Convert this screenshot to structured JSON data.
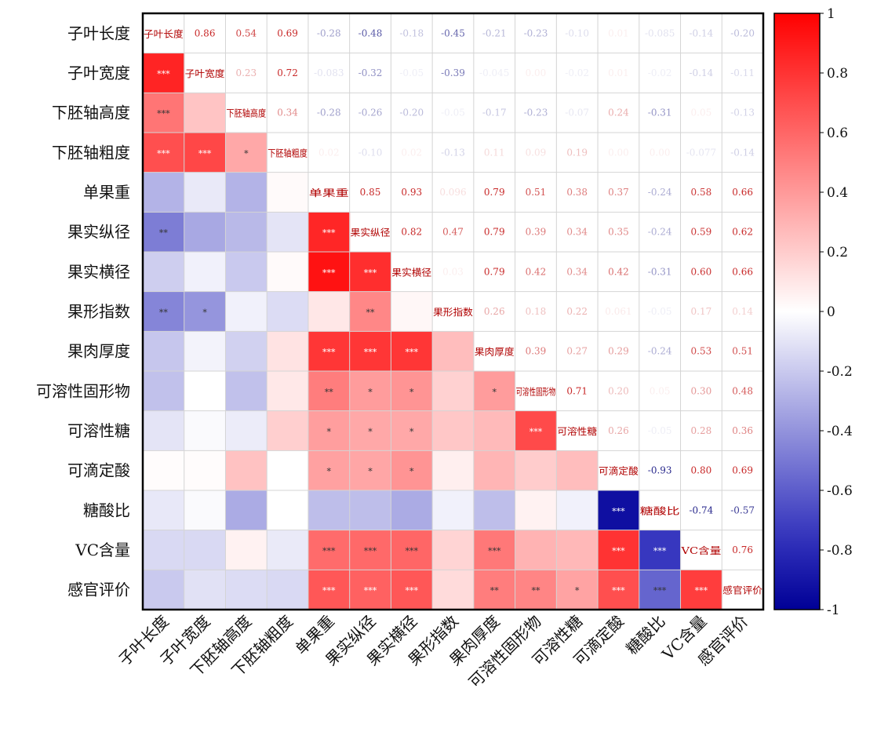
{
  "chart_data": {
    "type": "heatmap",
    "title": "",
    "variables": [
      "子叶长度",
      "子叶宽度",
      "下胚轴高度",
      "下胚轴粗度",
      "单果重",
      "果实纵径",
      "果实横径",
      "果形指数",
      "果肉厚度",
      "可溶性固形物",
      "可溶性糖",
      "可滴定酸",
      "糖酸比",
      "VC含量",
      "感官评价"
    ],
    "upper_values": [
      [
        null,
        0.86,
        0.54,
        0.69,
        -0.28,
        -0.48,
        -0.18,
        -0.45,
        -0.21,
        -0.23,
        -0.1,
        0.01,
        -0.085,
        -0.14,
        -0.2
      ],
      [
        null,
        null,
        0.23,
        0.72,
        -0.083,
        -0.32,
        -0.05,
        -0.39,
        -0.045,
        0.0,
        -0.02,
        0.01,
        -0.02,
        -0.14,
        -0.11
      ],
      [
        null,
        null,
        null,
        0.34,
        -0.28,
        -0.26,
        -0.2,
        -0.05,
        -0.17,
        -0.23,
        -0.07,
        0.24,
        -0.31,
        0.05,
        -0.13
      ],
      [
        null,
        null,
        null,
        null,
        0.02,
        -0.1,
        0.02,
        -0.13,
        0.11,
        0.09,
        0.19,
        0.0,
        0.0,
        -0.077,
        -0.14
      ],
      [
        null,
        null,
        null,
        null,
        null,
        0.85,
        0.93,
        0.096,
        0.79,
        0.51,
        0.38,
        0.37,
        -0.24,
        0.58,
        0.66
      ],
      [
        null,
        null,
        null,
        null,
        null,
        null,
        0.82,
        0.47,
        0.79,
        0.39,
        0.34,
        0.35,
        -0.24,
        0.59,
        0.62
      ],
      [
        null,
        null,
        null,
        null,
        null,
        null,
        null,
        0.03,
        0.79,
        0.42,
        0.34,
        0.42,
        -0.31,
        0.6,
        0.66
      ],
      [
        null,
        null,
        null,
        null,
        null,
        null,
        null,
        null,
        0.26,
        0.18,
        0.22,
        0.061,
        -0.05,
        0.17,
        0.14
      ],
      [
        null,
        null,
        null,
        null,
        null,
        null,
        null,
        null,
        null,
        0.39,
        0.27,
        0.29,
        -0.24,
        0.53,
        0.51
      ],
      [
        null,
        null,
        null,
        null,
        null,
        null,
        null,
        null,
        null,
        null,
        0.71,
        0.2,
        0.05,
        0.3,
        0.48
      ],
      [
        null,
        null,
        null,
        null,
        null,
        null,
        null,
        null,
        null,
        null,
        null,
        0.26,
        -0.05,
        0.28,
        0.36
      ],
      [
        null,
        null,
        null,
        null,
        null,
        null,
        null,
        null,
        null,
        null,
        null,
        null,
        -0.93,
        0.8,
        0.69
      ],
      [
        null,
        null,
        null,
        null,
        null,
        null,
        null,
        null,
        null,
        null,
        null,
        null,
        null,
        -0.74,
        -0.57
      ],
      [
        null,
        null,
        null,
        null,
        null,
        null,
        null,
        null,
        null,
        null,
        null,
        null,
        null,
        null,
        0.76
      ],
      [
        null,
        null,
        null,
        null,
        null,
        null,
        null,
        null,
        null,
        null,
        null,
        null,
        null,
        null,
        null
      ]
    ],
    "significance": [
      [
        1,
        0,
        "***"
      ],
      [
        2,
        0,
        "***"
      ],
      [
        3,
        0,
        "***"
      ],
      [
        3,
        1,
        "***"
      ],
      [
        3,
        2,
        "*"
      ],
      [
        5,
        0,
        "**"
      ],
      [
        5,
        4,
        "***"
      ],
      [
        6,
        4,
        "***"
      ],
      [
        6,
        5,
        "***"
      ],
      [
        7,
        0,
        "**"
      ],
      [
        7,
        1,
        "*"
      ],
      [
        7,
        5,
        "**"
      ],
      [
        8,
        4,
        "***"
      ],
      [
        8,
        5,
        "***"
      ],
      [
        8,
        6,
        "***"
      ],
      [
        9,
        4,
        "**"
      ],
      [
        9,
        5,
        "*"
      ],
      [
        9,
        6,
        "*"
      ],
      [
        9,
        8,
        "*"
      ],
      [
        10,
        4,
        "*"
      ],
      [
        10,
        5,
        "*"
      ],
      [
        10,
        6,
        "*"
      ],
      [
        10,
        9,
        "***"
      ],
      [
        11,
        4,
        "*"
      ],
      [
        11,
        5,
        "*"
      ],
      [
        11,
        6,
        "*"
      ],
      [
        12,
        11,
        "***"
      ],
      [
        13,
        4,
        "***"
      ],
      [
        13,
        5,
        "***"
      ],
      [
        13,
        6,
        "***"
      ],
      [
        13,
        8,
        "***"
      ],
      [
        13,
        11,
        "***"
      ],
      [
        13,
        12,
        "***"
      ],
      [
        14,
        4,
        "***"
      ],
      [
        14,
        5,
        "***"
      ],
      [
        14,
        6,
        "***"
      ],
      [
        14,
        8,
        "**"
      ],
      [
        14,
        9,
        "**"
      ],
      [
        14,
        10,
        "*"
      ],
      [
        14,
        11,
        "***"
      ],
      [
        14,
        12,
        "***"
      ],
      [
        14,
        13,
        "***"
      ]
    ],
    "colorbar": {
      "range": [
        -1,
        1
      ],
      "ticks": [
        "1",
        "0.8",
        "0.6",
        "0.4",
        "0.2",
        "0",
        "-0.2",
        "-0.4",
        "-0.6",
        "-0.8",
        "-1"
      ]
    },
    "colors": {
      "positive": "#ff0000",
      "negative": "#0000a0",
      "zero": "#ffffff",
      "diagonal_text": "#b00000"
    }
  }
}
